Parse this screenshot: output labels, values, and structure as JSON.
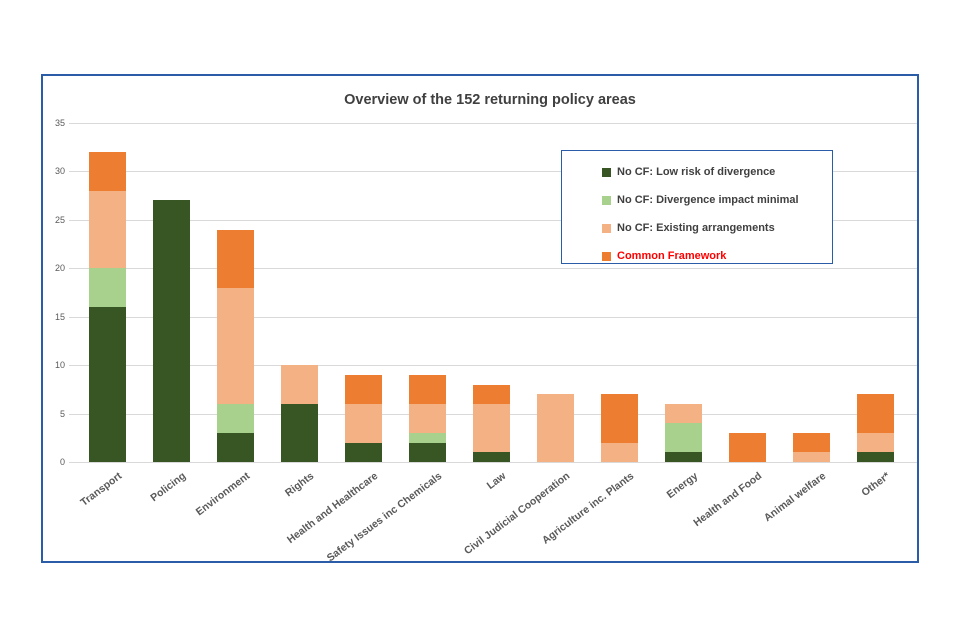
{
  "chart": {
    "frame_border_color": "#2B5CA8",
    "gridline_color": "#D9D9D9",
    "tick_text_color": "#595959",
    "title_color": "#404040",
    "background": "#ffffff"
  },
  "chart_data": {
    "type": "bar",
    "stacked": true,
    "title": "Overview of the 152 returning policy areas",
    "xlabel": "",
    "ylabel": "",
    "ylim": [
      0,
      35
    ],
    "yticks": [
      0,
      5,
      10,
      15,
      20,
      25,
      30,
      35
    ],
    "grid": true,
    "legend_position": "top-right",
    "categories": [
      "Transport",
      "Policing",
      "Environment",
      "Rights",
      "Health and Healthcare",
      "Safety Issues inc Chemicals",
      "Law",
      "Civil Judicial Cooperation",
      "Agriculture inc. Plants",
      "Energy",
      "Health and Food",
      "Animal welfare",
      "Other*"
    ],
    "series": [
      {
        "name": "No CF: Low risk of divergence",
        "color": "#375623",
        "legend_text_color": "#404040",
        "values": [
          16,
          27,
          3,
          6,
          2,
          2,
          1,
          0,
          0,
          1,
          0,
          0,
          1
        ]
      },
      {
        "name": "No CF: Divergence impact minimal",
        "color": "#A9D18E",
        "legend_text_color": "#404040",
        "values": [
          4,
          0,
          3,
          0,
          0,
          1,
          0,
          0,
          0,
          3,
          0,
          0,
          0
        ]
      },
      {
        "name": "No CF: Existing arrangements",
        "color": "#F4B183",
        "legend_text_color": "#404040",
        "values": [
          8,
          0,
          12,
          4,
          4,
          3,
          5,
          7,
          2,
          2,
          0,
          1,
          2
        ]
      },
      {
        "name": "Common Framework",
        "color": "#ED7D31",
        "legend_text_color": "#FF0000",
        "values": [
          4,
          0,
          6,
          0,
          3,
          3,
          2,
          0,
          5,
          0,
          3,
          2,
          4
        ]
      }
    ],
    "totals": [
      32,
      27,
      24,
      10,
      9,
      9,
      8,
      7,
      7,
      6,
      3,
      3,
      7
    ],
    "grand_total": 152
  }
}
